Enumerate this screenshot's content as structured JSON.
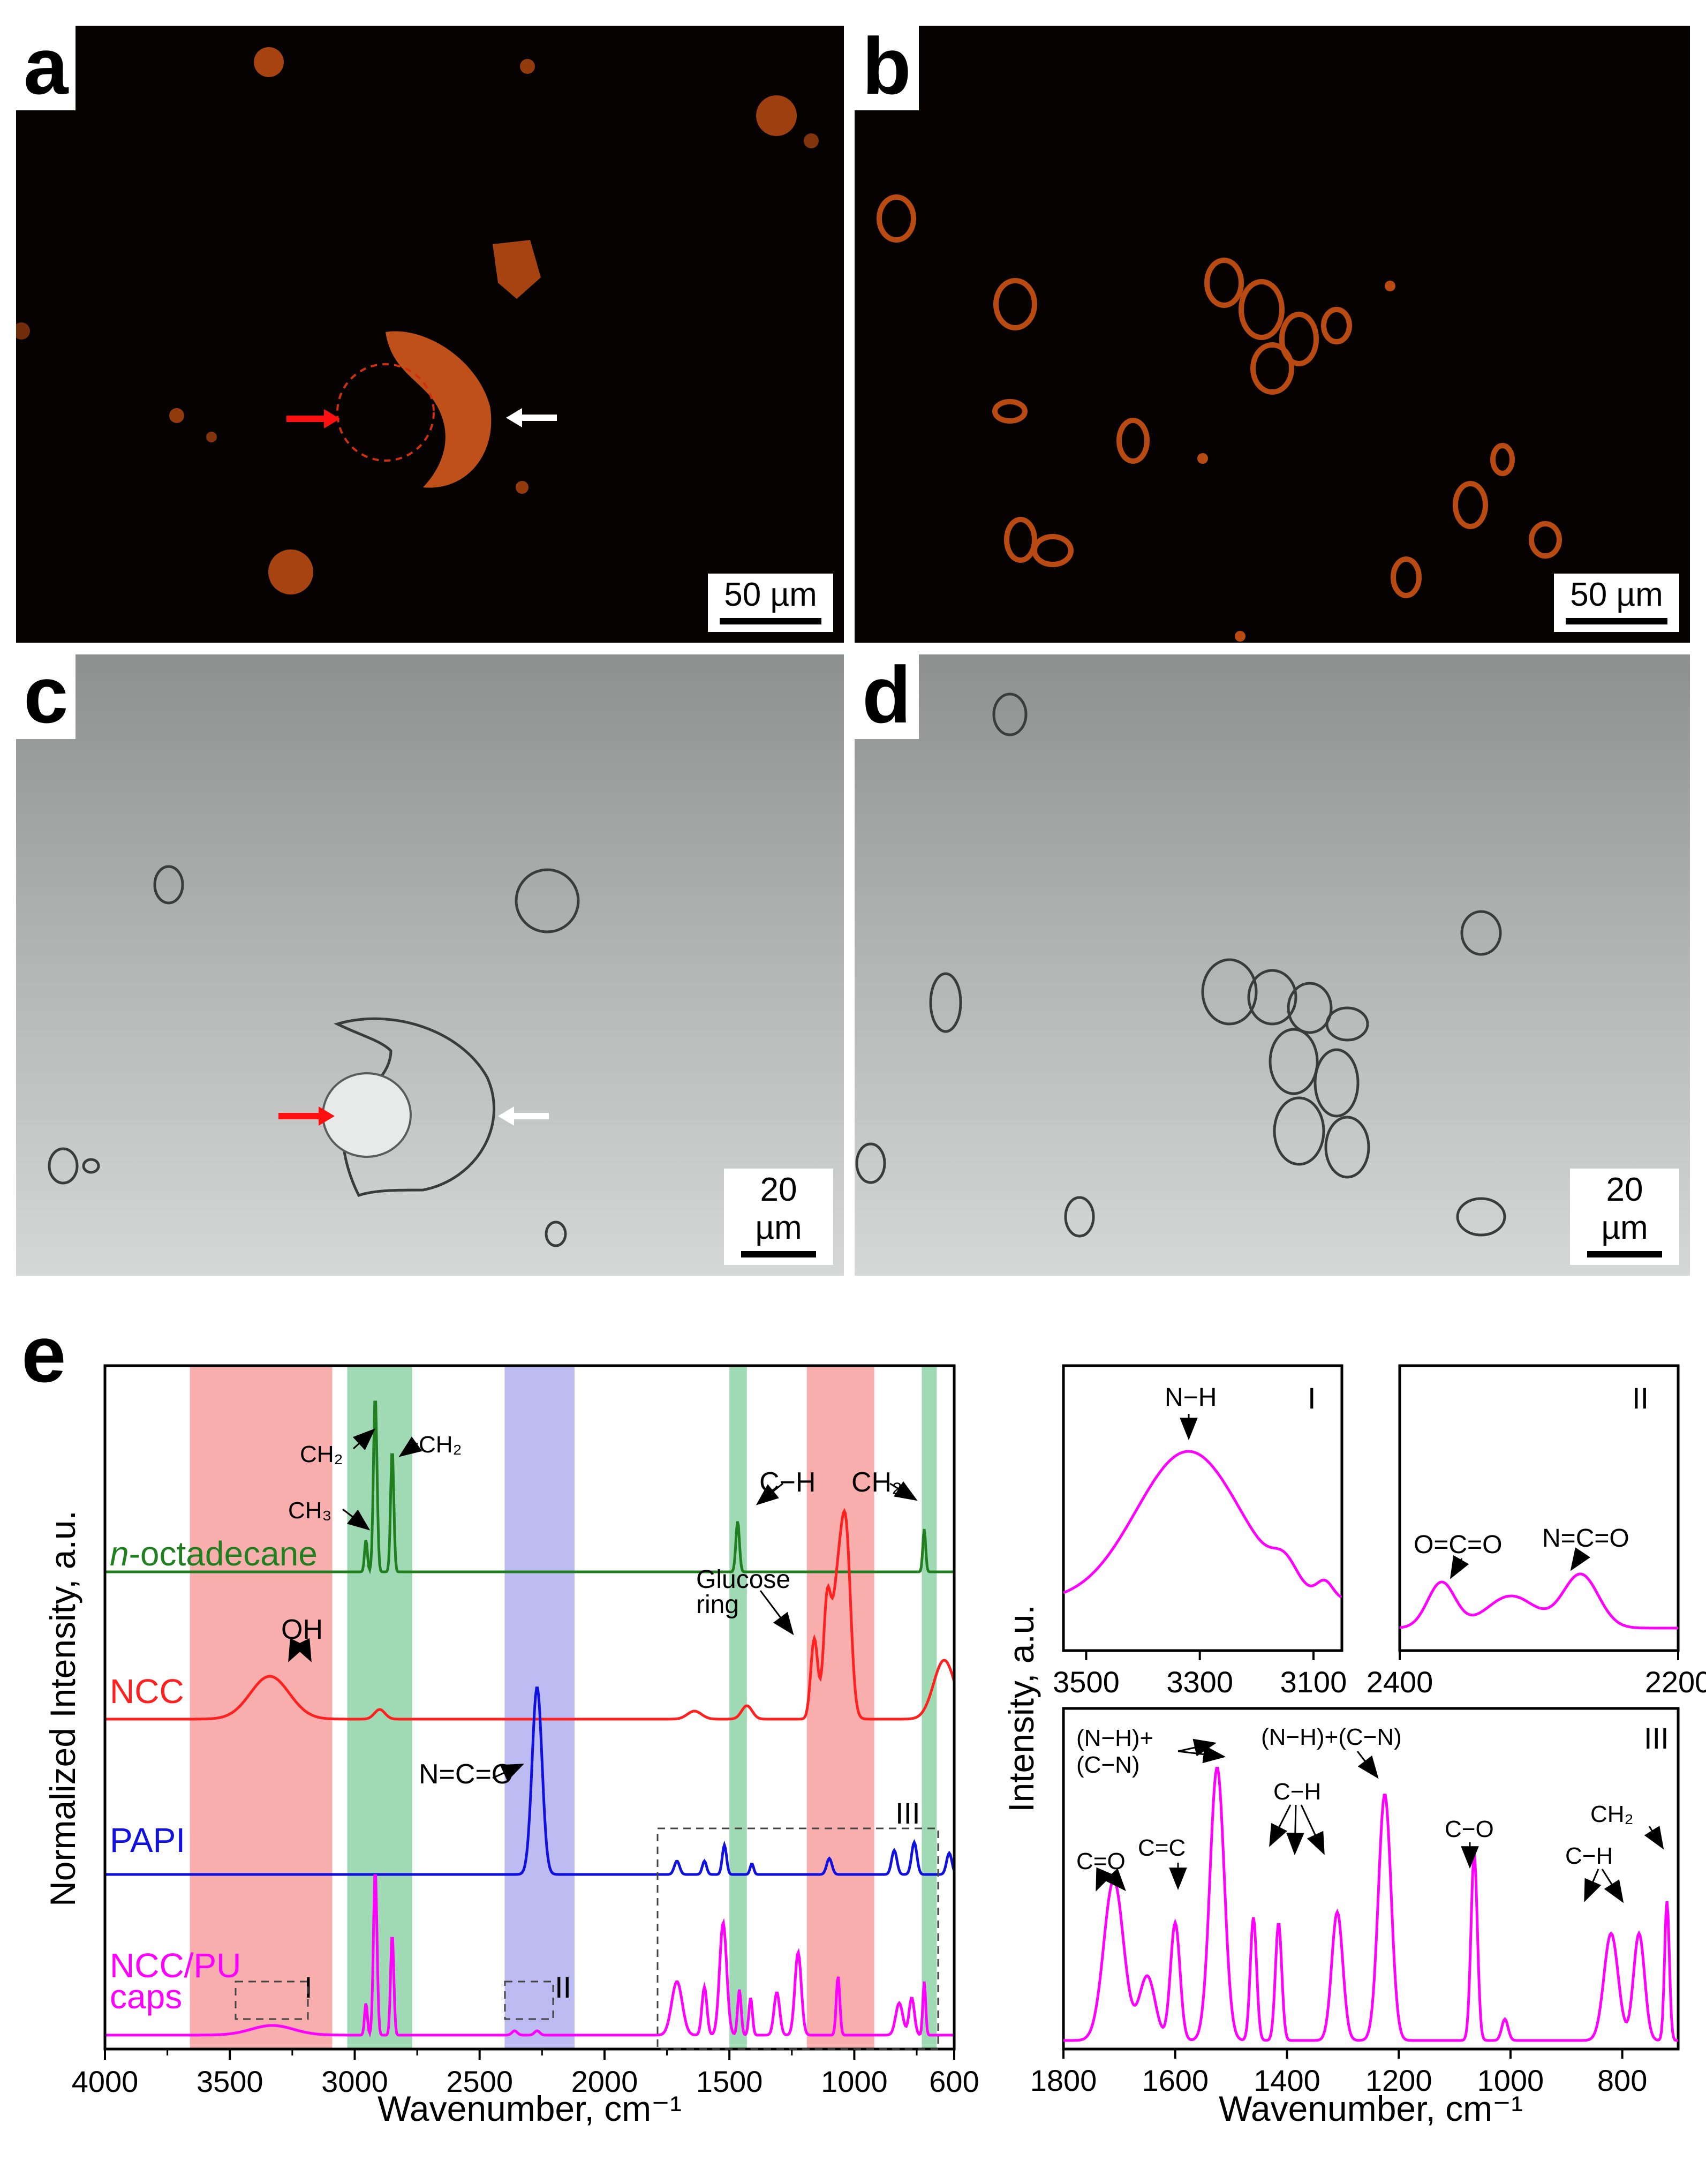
{
  "panels": {
    "a": {
      "label": "a",
      "scale": "50 µm"
    },
    "b": {
      "label": "b",
      "scale": "50 µm"
    },
    "c": {
      "label": "c",
      "scale": "20 µm"
    },
    "d": {
      "label": "d",
      "scale": "20 µm"
    }
  },
  "colors": {
    "red": "#ff2020",
    "green": "#208020",
    "blue": "#1010e0",
    "magenta": "#ff00ff",
    "red_band": "#f8a0a0",
    "green_band": "#8fd4a8",
    "blue_band": "#b0b0f0"
  },
  "chart_data": [
    {
      "id": "e",
      "type": "line",
      "panel_label": "e",
      "xlabel": "Wavenumber, cm⁻¹",
      "ylabel": "Normalized Intensity, a.u.",
      "xlim": [
        4000,
        600
      ],
      "xticks": [
        "4000",
        "3500",
        "3000",
        "2500",
        "2000",
        "1500",
        "1000",
        "600"
      ],
      "series": [
        {
          "name": "n-octadecane",
          "name_prefix": "n",
          "name_rest": "-octadecane",
          "color": "#208020"
        },
        {
          "name": "NCC",
          "color": "#ff2020"
        },
        {
          "name": "PAPI",
          "color": "#1010e0"
        },
        {
          "name": "NCC/PU caps",
          "name_line1": "NCC/PU",
          "name_line2": "caps",
          "color": "#ff00ff"
        }
      ],
      "bands": [
        {
          "from": 3660,
          "to": 3090,
          "color": "red"
        },
        {
          "from": 3030,
          "to": 2770,
          "color": "green"
        },
        {
          "from": 2400,
          "to": 2120,
          "color": "blue"
        },
        {
          "from": 1500,
          "to": 1430,
          "color": "green"
        },
        {
          "from": 1190,
          "to": 920,
          "color": "red"
        },
        {
          "from": 730,
          "to": 670,
          "color": "green"
        }
      ],
      "annotations": {
        "ch2_a": "CH₂",
        "ch2_b": "CH₂",
        "ch3": "CH₃",
        "ch": "C−H",
        "ch2_c": "CH₂",
        "oh": "OH",
        "glucose_1": "Glucose",
        "glucose_2": "ring",
        "nco": "N=C=O",
        "box1": "I",
        "box2": "II",
        "box3": "III"
      }
    },
    {
      "id": "inset-I",
      "type": "line",
      "label": "I",
      "xlim": [
        3500,
        3050
      ],
      "xticks": [
        "3500",
        "3300",
        "3100"
      ],
      "annotations": {
        "nh": "N−H"
      },
      "color": "#ff00ff"
    },
    {
      "id": "inset-II",
      "type": "line",
      "label": "II",
      "xlim": [
        2400,
        2200
      ],
      "xticks": [
        "2400",
        "2200"
      ],
      "annotations": {
        "oco": "O=C=O",
        "nco": "N=C=O"
      },
      "color": "#ff00ff"
    },
    {
      "id": "inset-III",
      "type": "line",
      "label": "III",
      "xlim": [
        1800,
        700
      ],
      "xticks": [
        "1800",
        "1600",
        "1400",
        "1200",
        "1000",
        "800"
      ],
      "xlabel": "Wavenumber, cm⁻¹",
      "ylabel": "Intensity, a.u.",
      "annotations": {
        "nhcn_1": "(N−H)+",
        "nhcn_2": "(C−N)",
        "nhcn_3": "(N−H)+(C−N)",
        "co": "C=O",
        "cc": "C=C",
        "ch_a": "C−H",
        "cO": "C−O",
        "ch_b": "C−H",
        "ch2": "CH₂"
      },
      "color": "#ff00ff"
    }
  ]
}
